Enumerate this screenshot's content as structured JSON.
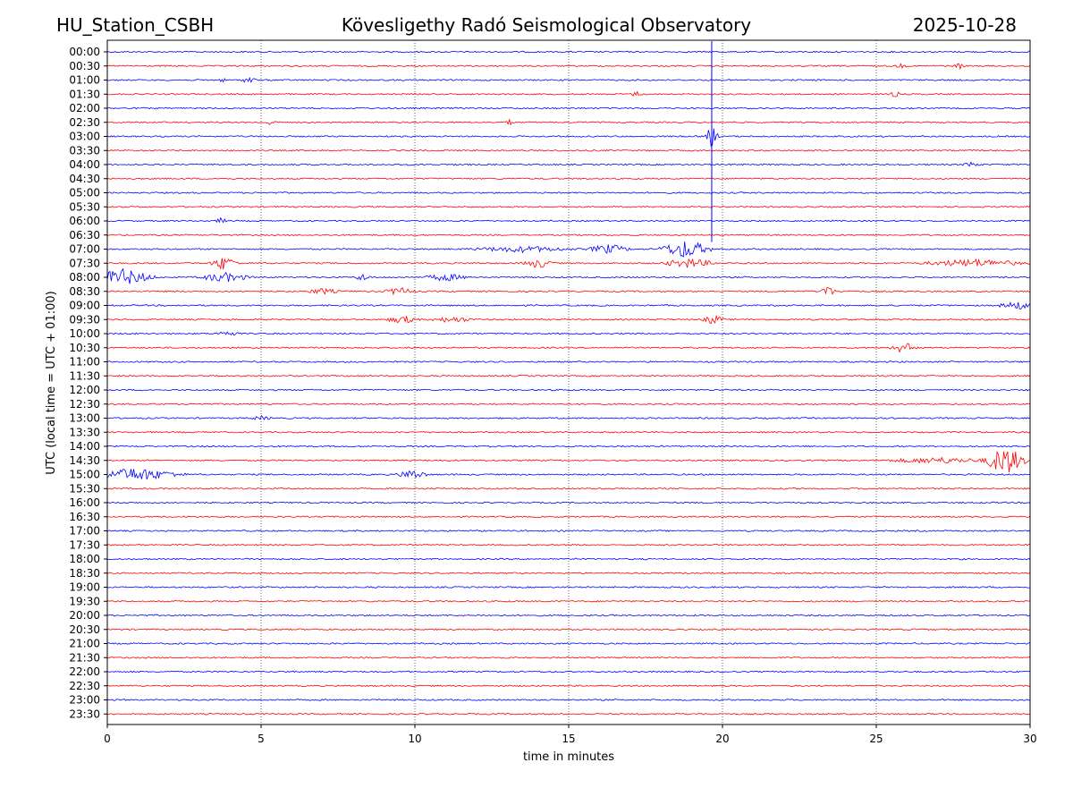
{
  "header": {
    "station": "HU_Station_CSBH",
    "observatory": "Kövesligethy Radó Seismological Observatory",
    "date": "2025-10-28"
  },
  "chart_data": {
    "type": "line",
    "title": "Kövesligethy Radó Seismological Observatory",
    "xlabel": "time in minutes",
    "ylabel": "UTC (local time = UTC + 01:00)",
    "xlim": [
      0,
      30
    ],
    "x_ticks": [
      0,
      5,
      10,
      15,
      20,
      25,
      30
    ],
    "row_labels": [
      "00:00",
      "00:30",
      "01:00",
      "01:30",
      "02:00",
      "02:30",
      "03:00",
      "03:30",
      "04:00",
      "04:30",
      "05:00",
      "05:30",
      "06:00",
      "06:30",
      "07:00",
      "07:30",
      "08:00",
      "08:30",
      "09:00",
      "09:30",
      "10:00",
      "10:30",
      "11:00",
      "11:30",
      "12:00",
      "12:30",
      "13:00",
      "13:30",
      "14:00",
      "14:30",
      "15:00",
      "15:30",
      "16:00",
      "16:30",
      "17:00",
      "17:30",
      "18:00",
      "18:30",
      "19:00",
      "19:30",
      "20:00",
      "20:30",
      "21:00",
      "21:30",
      "22:00",
      "22:30",
      "23:00",
      "23:30"
    ],
    "trace_colors": [
      "#0000ff",
      "#ff0000"
    ],
    "grid": "vertical dotted lines at x ticks",
    "events": [
      {
        "row": 2,
        "t": 4.6,
        "amp": 4,
        "dur": 0.25
      },
      {
        "row": 2,
        "t": 3.7,
        "amp": 2,
        "dur": 0.2
      },
      {
        "row": 1,
        "t": 27.7,
        "amp": 3,
        "dur": 0.2
      },
      {
        "row": 1,
        "t": 25.8,
        "amp": 2,
        "dur": 0.2
      },
      {
        "row": 3,
        "t": 17.2,
        "amp": 3,
        "dur": 0.2
      },
      {
        "row": 3,
        "t": 25.6,
        "amp": 3,
        "dur": 0.2
      },
      {
        "row": 5,
        "t": 5.3,
        "amp": 3,
        "dur": 0.2
      },
      {
        "row": 5,
        "t": 13.1,
        "amp": 3,
        "dur": 0.2
      },
      {
        "row": 6,
        "t": 19.65,
        "amp": 12,
        "dur": 0.25
      },
      {
        "row": 8,
        "t": 28.1,
        "amp": 3,
        "dur": 0.3
      },
      {
        "row": 12,
        "t": 3.7,
        "amp": 3,
        "dur": 0.2
      },
      {
        "row": 14,
        "t": 13.5,
        "amp": 3,
        "dur": 2.0
      },
      {
        "row": 14,
        "t": 16.3,
        "amp": 5,
        "dur": 0.8
      },
      {
        "row": 14,
        "t": 18.8,
        "amp": 10,
        "dur": 1.0
      },
      {
        "row": 15,
        "t": 3.8,
        "amp": 8,
        "dur": 0.5
      },
      {
        "row": 15,
        "t": 14.0,
        "amp": 5,
        "dur": 0.6
      },
      {
        "row": 15,
        "t": 18.9,
        "amp": 5,
        "dur": 1.0
      },
      {
        "row": 15,
        "t": 28.2,
        "amp": 4,
        "dur": 2.0
      },
      {
        "row": 16,
        "t": 0.5,
        "amp": 9,
        "dur": 1.2
      },
      {
        "row": 16,
        "t": 3.8,
        "amp": 5,
        "dur": 1.0
      },
      {
        "row": 16,
        "t": 8.3,
        "amp": 4,
        "dur": 0.3
      },
      {
        "row": 16,
        "t": 11.0,
        "amp": 4,
        "dur": 0.8
      },
      {
        "row": 17,
        "t": 9.5,
        "amp": 4,
        "dur": 0.6
      },
      {
        "row": 17,
        "t": 23.4,
        "amp": 7,
        "dur": 0.3
      },
      {
        "row": 17,
        "t": 7.0,
        "amp": 3,
        "dur": 0.6
      },
      {
        "row": 18,
        "t": 29.6,
        "amp": 4,
        "dur": 0.8
      },
      {
        "row": 19,
        "t": 9.6,
        "amp": 4,
        "dur": 0.6
      },
      {
        "row": 19,
        "t": 19.7,
        "amp": 5,
        "dur": 0.4
      },
      {
        "row": 19,
        "t": 11.2,
        "amp": 3,
        "dur": 0.8
      },
      {
        "row": 20,
        "t": 3.9,
        "amp": 3,
        "dur": 0.4
      },
      {
        "row": 21,
        "t": 25.9,
        "amp": 6,
        "dur": 0.5
      },
      {
        "row": 26,
        "t": 5.0,
        "amp": 2,
        "dur": 0.4
      },
      {
        "row": 29,
        "t": 29.2,
        "amp": 16,
        "dur": 0.8
      },
      {
        "row": 29,
        "t": 27.0,
        "amp": 3,
        "dur": 2.0
      },
      {
        "row": 30,
        "t": 0.9,
        "amp": 7,
        "dur": 1.8
      },
      {
        "row": 30,
        "t": 9.9,
        "amp": 5,
        "dur": 0.6
      }
    ]
  }
}
